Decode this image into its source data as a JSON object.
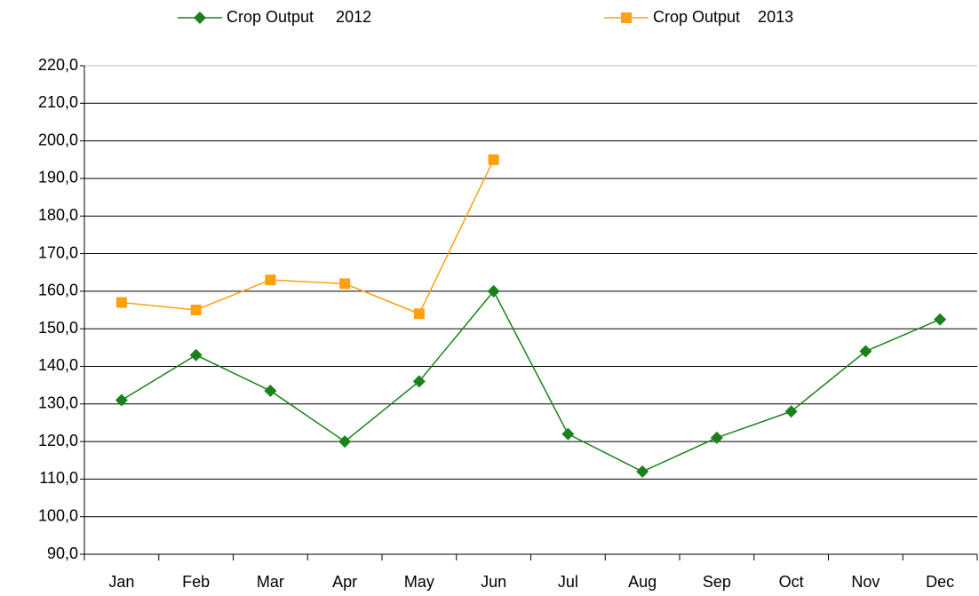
{
  "chart_data": {
    "type": "line",
    "categories": [
      "Jan",
      "Feb",
      "Mar",
      "Apr",
      "May",
      "Jun",
      "Jul",
      "Aug",
      "Sep",
      "Oct",
      "Nov",
      "Dec"
    ],
    "series": [
      {
        "name": "Crop Output     2012",
        "color": "#1a821a",
        "marker": "diamond",
        "values": [
          131,
          143,
          133.5,
          120,
          136,
          160,
          122,
          112,
          121,
          128,
          144,
          152.5
        ]
      },
      {
        "name": "Crop Output    2013",
        "color": "#ffa010",
        "marker": "square",
        "values": [
          157,
          155,
          163,
          162,
          154,
          195,
          null,
          null,
          null,
          null,
          null,
          null
        ]
      }
    ],
    "ylim": [
      90,
      220
    ],
    "yticks": [
      {
        "value": 90,
        "label": "90,0"
      },
      {
        "value": 100,
        "label": "100,0"
      },
      {
        "value": 110,
        "label": "110,0"
      },
      {
        "value": 120,
        "label": "120,0"
      },
      {
        "value": 130,
        "label": "130,0"
      },
      {
        "value": 140,
        "label": "140,0"
      },
      {
        "value": 150,
        "label": "150,0"
      },
      {
        "value": 160,
        "label": "160,0"
      },
      {
        "value": 170,
        "label": "170,0"
      },
      {
        "value": 180,
        "label": "180,0"
      },
      {
        "value": 190,
        "label": "190,0"
      },
      {
        "value": 200,
        "label": "200,0"
      },
      {
        "value": 210,
        "label": "210,0"
      },
      {
        "value": 220,
        "label": "220,0"
      }
    ],
    "grid": true,
    "legend": "top"
  }
}
